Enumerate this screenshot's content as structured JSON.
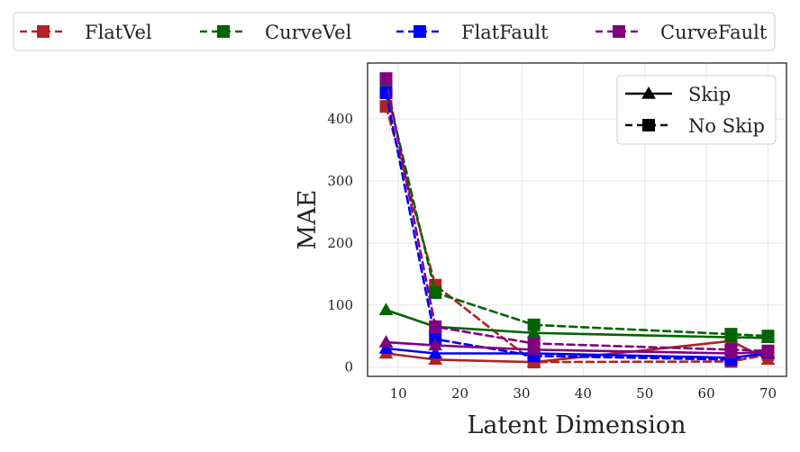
{
  "chart_data": {
    "type": "line",
    "title": "",
    "xlabel": "Latent Dimension",
    "ylabel": "MAE",
    "x": [
      8,
      16,
      32,
      64,
      70
    ],
    "xlim": [
      5,
      73
    ],
    "ylim": [
      -15,
      490
    ],
    "xticks": [
      10,
      20,
      30,
      40,
      50,
      60,
      70
    ],
    "yticks": [
      0,
      100,
      200,
      300,
      400
    ],
    "grid": true,
    "legend_top": {
      "placement": "top, above plot",
      "entries": [
        {
          "name": "FlatVel",
          "color": "#b22222"
        },
        {
          "name": "CurveVel",
          "color": "#006400"
        },
        {
          "name": "FlatFault",
          "color": "#0000ff"
        },
        {
          "name": "CurveFault",
          "color": "#800080"
        }
      ]
    },
    "legend_style": {
      "placement": "top-right",
      "entries": [
        {
          "name": "Skip",
          "style": "solid",
          "marker": "triangle"
        },
        {
          "name": "No Skip",
          "style": "dashed",
          "marker": "square"
        }
      ]
    },
    "series": [
      {
        "name": "FlatVel",
        "variant": "Skip",
        "color": "#b22222",
        "values": [
          22,
          12,
          8,
          42,
          12
        ]
      },
      {
        "name": "FlatVel",
        "variant": "No Skip",
        "color": "#b22222",
        "values": [
          420,
          132,
          8,
          9,
          20
        ]
      },
      {
        "name": "CurveVel",
        "variant": "Skip",
        "color": "#006400",
        "values": [
          92,
          65,
          55,
          48,
          47
        ]
      },
      {
        "name": "CurveVel",
        "variant": "No Skip",
        "color": "#006400",
        "values": [
          452,
          120,
          68,
          53,
          50
        ]
      },
      {
        "name": "FlatFault",
        "variant": "Skip",
        "color": "#0000ff",
        "values": [
          30,
          22,
          22,
          15,
          22
        ]
      },
      {
        "name": "FlatFault",
        "variant": "No Skip",
        "color": "#0000ff",
        "values": [
          442,
          45,
          18,
          12,
          25
        ]
      },
      {
        "name": "CurveFault",
        "variant": "Skip",
        "color": "#800080",
        "values": [
          40,
          35,
          28,
          22,
          24
        ]
      },
      {
        "name": "CurveFault",
        "variant": "No Skip",
        "color": "#800080",
        "values": [
          465,
          65,
          38,
          28,
          26
        ]
      }
    ]
  }
}
